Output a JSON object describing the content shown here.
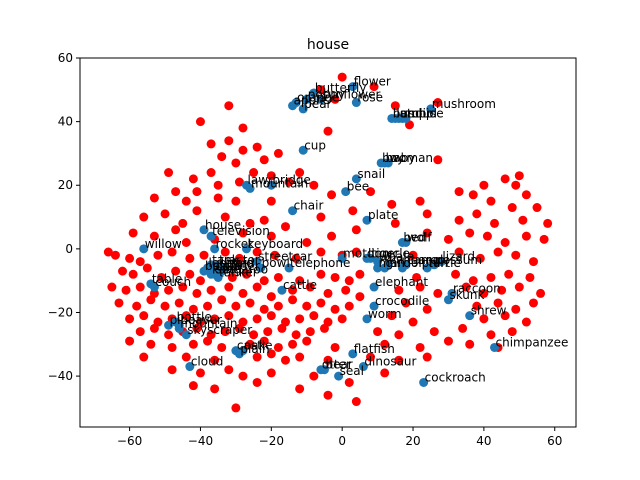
{
  "chart_data": {
    "type": "scatter",
    "title": "house",
    "xlabel": "",
    "ylabel": "",
    "xlim": [
      -74,
      66
    ],
    "ylim": [
      -56,
      60
    ],
    "xticks": [
      -60,
      -40,
      -20,
      0,
      20,
      40,
      60
    ],
    "yticks": [
      -40,
      -20,
      0,
      20,
      40,
      60
    ],
    "grid": false,
    "colors": {
      "labeled": "#1f77b4",
      "background": "#ff0000"
    },
    "labeled_points": [
      {
        "label": "flower",
        "x": 3,
        "y": 51
      },
      {
        "label": "butterfly",
        "x": -8,
        "y": 49
      },
      {
        "label": "poppy",
        "x": -10,
        "y": 47
      },
      {
        "label": "orange",
        "x": -13,
        "y": 46
      },
      {
        "label": "sunflower",
        "x": -6,
        "y": 47
      },
      {
        "label": "apple",
        "x": -14,
        "y": 45
      },
      {
        "label": "pear",
        "x": -11,
        "y": 44
      },
      {
        "label": "rose",
        "x": 4,
        "y": 46
      },
      {
        "label": "mushroom",
        "x": 25,
        "y": 44
      },
      {
        "label": "bus",
        "x": 14,
        "y": 41
      },
      {
        "label": "lamp",
        "x": 15,
        "y": 41
      },
      {
        "label": "orchid",
        "x": 16,
        "y": 41
      },
      {
        "label": "mouse",
        "x": 17,
        "y": 41
      },
      {
        "label": "tulip",
        "x": 18,
        "y": 41
      },
      {
        "label": "cup",
        "x": -11,
        "y": 31
      },
      {
        "label": "boy",
        "x": 11,
        "y": 27
      },
      {
        "label": "baby",
        "x": 12,
        "y": 27
      },
      {
        "label": "woman",
        "x": 13,
        "y": 27
      },
      {
        "label": "snail",
        "x": 4,
        "y": 22
      },
      {
        "label": "lawn",
        "x": -27,
        "y": 20
      },
      {
        "label": "bridge",
        "x": -20,
        "y": 20
      },
      {
        "label": "mountain",
        "x": -26,
        "y": 19
      },
      {
        "label": "bee",
        "x": 1,
        "y": 18
      },
      {
        "label": "chair",
        "x": -14,
        "y": 12
      },
      {
        "label": "plate",
        "x": 7,
        "y": 9
      },
      {
        "label": "house",
        "x": -39,
        "y": 6
      },
      {
        "label": "television",
        "x": -37,
        "y": 4
      },
      {
        "label": "bed",
        "x": 17,
        "y": 2
      },
      {
        "label": "wolf",
        "x": 18,
        "y": 2
      },
      {
        "label": "willow",
        "x": -56,
        "y": 0
      },
      {
        "label": "rocket",
        "x": -36,
        "y": 0
      },
      {
        "label": "keyboard",
        "x": -27,
        "y": 0
      },
      {
        "label": "motorcycle",
        "x": 0,
        "y": -3
      },
      {
        "label": "lion",
        "x": 7,
        "y": -3
      },
      {
        "label": "tiger",
        "x": 8,
        "y": -3
      },
      {
        "label": "whale",
        "x": 10,
        "y": -4
      },
      {
        "label": "lizard",
        "x": 28,
        "y": -4
      },
      {
        "label": "streetcar",
        "x": -24,
        "y": -4
      },
      {
        "label": "kangaroo",
        "x": 13,
        "y": -5
      },
      {
        "label": "camel",
        "x": 18,
        "y": -5
      },
      {
        "label": "possum",
        "x": 26,
        "y": -5
      },
      {
        "label": "telephone",
        "x": -15,
        "y": -6
      },
      {
        "label": "tank",
        "x": -37,
        "y": -5
      },
      {
        "label": "tractor",
        "x": -35,
        "y": -5
      },
      {
        "label": "train",
        "x": -33,
        "y": -6
      },
      {
        "label": "leopard",
        "x": -38,
        "y": -6
      },
      {
        "label": "man",
        "x": 10,
        "y": -6
      },
      {
        "label": "girl",
        "x": 12,
        "y": -6
      },
      {
        "label": "bowl",
        "x": -23,
        "y": -6
      },
      {
        "label": "crab",
        "x": -36,
        "y": -7
      },
      {
        "label": "spider",
        "x": -34,
        "y": -7
      },
      {
        "label": "dolphin",
        "x": 17,
        "y": -6
      },
      {
        "label": "turtle",
        "x": 24,
        "y": -6
      },
      {
        "label": "bottle",
        "x": -39,
        "y": -7
      },
      {
        "label": "sea",
        "x": -36,
        "y": -8
      },
      {
        "label": "tanker",
        "x": -35,
        "y": -9
      },
      {
        "label": "kangaroo",
        "x": -37,
        "y": -8
      },
      {
        "label": "elephant",
        "x": 9,
        "y": -12
      },
      {
        "label": "cattle",
        "x": -17,
        "y": -13
      },
      {
        "label": "table",
        "x": -54,
        "y": -11
      },
      {
        "label": "couch",
        "x": -53,
        "y": -12
      },
      {
        "label": "raccoon",
        "x": 31,
        "y": -14
      },
      {
        "label": "skunk",
        "x": 30,
        "y": -16
      },
      {
        "label": "crocodile",
        "x": 9,
        "y": -18
      },
      {
        "label": "worm",
        "x": 7,
        "y": -22
      },
      {
        "label": "shrew",
        "x": 36,
        "y": -21
      },
      {
        "label": "bottle",
        "x": -47,
        "y": -23
      },
      {
        "label": "beaver",
        "x": -46,
        "y": -24
      },
      {
        "label": "pine",
        "x": -49,
        "y": -24
      },
      {
        "label": "mountain",
        "x": -46,
        "y": -25
      },
      {
        "label": "skyscraper",
        "x": -44,
        "y": -27
      },
      {
        "label": "chimpanzee",
        "x": 43,
        "y": -31
      },
      {
        "label": "castle",
        "x": -30,
        "y": -32
      },
      {
        "label": "oak",
        "x": -28,
        "y": -32
      },
      {
        "label": "plain",
        "x": -29,
        "y": -33
      },
      {
        "label": "flatfish",
        "x": 3,
        "y": -33
      },
      {
        "label": "cloud",
        "x": -43,
        "y": -37
      },
      {
        "label": "dinosaur",
        "x": 6,
        "y": -37
      },
      {
        "label": "otter",
        "x": -6,
        "y": -38
      },
      {
        "label": "bear",
        "x": -5,
        "y": -38
      },
      {
        "label": "seal",
        "x": -1,
        "y": -40
      },
      {
        "label": "cockroach",
        "x": 23,
        "y": -42
      }
    ],
    "background_points": [
      [
        0,
        54
      ],
      [
        9,
        51
      ],
      [
        -6,
        50
      ],
      [
        -2,
        47
      ],
      [
        -32,
        45
      ],
      [
        27,
        46
      ],
      [
        15,
        45
      ],
      [
        19,
        39
      ],
      [
        -4,
        37
      ],
      [
        -40,
        40
      ],
      [
        -28,
        38
      ],
      [
        -32,
        34
      ],
      [
        -37,
        33
      ],
      [
        -28,
        31
      ],
      [
        -24,
        32
      ],
      [
        -34,
        29
      ],
      [
        -22,
        28
      ],
      [
        -30,
        27
      ],
      [
        -18,
        30
      ],
      [
        27,
        28
      ],
      [
        -49,
        24
      ],
      [
        -42,
        22
      ],
      [
        -37,
        24
      ],
      [
        -25,
        24
      ],
      [
        -12,
        24
      ],
      [
        -20,
        23
      ],
      [
        -35,
        20
      ],
      [
        -29,
        21
      ],
      [
        -15,
        21
      ],
      [
        -8,
        20
      ],
      [
        33,
        18
      ],
      [
        40,
        20
      ],
      [
        46,
        22
      ],
      [
        50,
        23
      ],
      [
        49,
        20
      ],
      [
        52,
        17
      ],
      [
        -41,
        18
      ],
      [
        -44,
        15
      ],
      [
        -47,
        18
      ],
      [
        -53,
        16
      ],
      [
        -35,
        16
      ],
      [
        -30,
        15
      ],
      [
        -20,
        15
      ],
      [
        -3,
        17
      ],
      [
        8,
        18
      ],
      [
        22,
        15
      ],
      [
        24,
        11
      ],
      [
        37,
        17
      ],
      [
        42,
        15
      ],
      [
        48,
        13
      ],
      [
        55,
        13
      ],
      [
        -56,
        10
      ],
      [
        -50,
        11
      ],
      [
        -45,
        8
      ],
      [
        -41,
        12
      ],
      [
        -33,
        10
      ],
      [
        -26,
        8
      ],
      [
        -22,
        9
      ],
      [
        -16,
        7
      ],
      [
        -6,
        10
      ],
      [
        3,
        12
      ],
      [
        14,
        14
      ],
      [
        33,
        9
      ],
      [
        38,
        11
      ],
      [
        43,
        8
      ],
      [
        51,
        9
      ],
      [
        58,
        8
      ],
      [
        -59,
        5
      ],
      [
        -53,
        4
      ],
      [
        -47,
        6
      ],
      [
        -44,
        2
      ],
      [
        -36,
        3
      ],
      [
        -28,
        5
      ],
      [
        -20,
        4
      ],
      [
        -10,
        2
      ],
      [
        -3,
        4
      ],
      [
        4,
        6
      ],
      [
        15,
        8
      ],
      [
        24,
        5
      ],
      [
        30,
        3
      ],
      [
        36,
        5
      ],
      [
        41,
        4
      ],
      [
        46,
        2
      ],
      [
        52,
        4
      ],
      [
        57,
        3
      ],
      [
        -66,
        -1
      ],
      [
        -64,
        -2
      ],
      [
        -60,
        -3
      ],
      [
        -57,
        -4
      ],
      [
        -52,
        -2
      ],
      [
        -48,
        -1
      ],
      [
        -43,
        -3
      ],
      [
        -39,
        -2
      ],
      [
        -33,
        -1
      ],
      [
        -29,
        -3
      ],
      [
        -24,
        -1
      ],
      [
        -19,
        -2
      ],
      [
        -13,
        -3
      ],
      [
        -6,
        -1
      ],
      [
        0,
        -2
      ],
      [
        4,
        -1
      ],
      [
        20,
        -2
      ],
      [
        33,
        -1
      ],
      [
        39,
        -3
      ],
      [
        44,
        -1
      ],
      [
        49,
        -2
      ],
      [
        54,
        -4
      ],
      [
        -62,
        -7
      ],
      [
        -59,
        -8
      ],
      [
        -55,
        -6
      ],
      [
        -51,
        -9
      ],
      [
        -47,
        -7
      ],
      [
        -43,
        -8
      ],
      [
        -40,
        -10
      ],
      [
        -31,
        -9
      ],
      [
        -27,
        -8
      ],
      [
        -22,
        -10
      ],
      [
        -18,
        -9
      ],
      [
        -12,
        -10
      ],
      [
        -6,
        -8
      ],
      [
        -2,
        -9
      ],
      [
        2,
        -10
      ],
      [
        5,
        -8
      ],
      [
        21,
        -9
      ],
      [
        32,
        -8
      ],
      [
        37,
        -10
      ],
      [
        42,
        -9
      ],
      [
        47,
        -8
      ],
      [
        53,
        -9
      ],
      [
        -65,
        -12
      ],
      [
        -61,
        -13
      ],
      [
        -57,
        -12
      ],
      [
        -53,
        -14
      ],
      [
        -49,
        -13
      ],
      [
        -45,
        -12
      ],
      [
        -41,
        -14
      ],
      [
        -37,
        -13
      ],
      [
        -32,
        -12
      ],
      [
        -28,
        -14
      ],
      [
        -24,
        -12
      ],
      [
        -20,
        -15
      ],
      [
        -14,
        -13
      ],
      [
        -9,
        -12
      ],
      [
        -4,
        -14
      ],
      [
        1,
        -13
      ],
      [
        5,
        -15
      ],
      [
        16,
        -13
      ],
      [
        22,
        -12
      ],
      [
        27,
        -14
      ],
      [
        35,
        -12
      ],
      [
        40,
        -14
      ],
      [
        45,
        -13
      ],
      [
        50,
        -12
      ],
      [
        56,
        -14
      ],
      [
        -63,
        -17
      ],
      [
        -58,
        -18
      ],
      [
        -54,
        -16
      ],
      [
        -50,
        -18
      ],
      [
        -46,
        -17
      ],
      [
        -42,
        -19
      ],
      [
        -38,
        -18
      ],
      [
        -34,
        -16
      ],
      [
        -30,
        -18
      ],
      [
        -26,
        -17
      ],
      [
        -22,
        -19
      ],
      [
        -18,
        -18
      ],
      [
        -14,
        -16
      ],
      [
        -10,
        -18
      ],
      [
        -6,
        -17
      ],
      [
        -2,
        -19
      ],
      [
        2,
        -18
      ],
      [
        18,
        -17
      ],
      [
        24,
        -19
      ],
      [
        38,
        -18
      ],
      [
        44,
        -17
      ],
      [
        49,
        -19
      ],
      [
        54,
        -17
      ],
      [
        -60,
        -22
      ],
      [
        -56,
        -21
      ],
      [
        -52,
        -23
      ],
      [
        -48,
        -22
      ],
      [
        -44,
        -21
      ],
      [
        -40,
        -23
      ],
      [
        -36,
        -22
      ],
      [
        -32,
        -21
      ],
      [
        -28,
        -23
      ],
      [
        -24,
        -22
      ],
      [
        -20,
        -21
      ],
      [
        -16,
        -23
      ],
      [
        -12,
        -22
      ],
      [
        -8,
        -21
      ],
      [
        -4,
        -23
      ],
      [
        0,
        -22
      ],
      [
        14,
        -21
      ],
      [
        20,
        -23
      ],
      [
        40,
        -22
      ],
      [
        46,
        -21
      ],
      [
        52,
        -23
      ],
      [
        -57,
        -26
      ],
      [
        -53,
        -25
      ],
      [
        -49,
        -27
      ],
      [
        -45,
        -26
      ],
      [
        -41,
        -25
      ],
      [
        -37,
        -27
      ],
      [
        -33,
        -26
      ],
      [
        -29,
        -25
      ],
      [
        -25,
        -27
      ],
      [
        -21,
        -26
      ],
      [
        -17,
        -25
      ],
      [
        -13,
        -27
      ],
      [
        -9,
        -26
      ],
      [
        -5,
        -25
      ],
      [
        10,
        -26
      ],
      [
        16,
        -27
      ],
      [
        26,
        -26
      ],
      [
        34,
        -25
      ],
      [
        42,
        -27
      ],
      [
        48,
        -26
      ],
      [
        -60,
        -29
      ],
      [
        -54,
        -30
      ],
      [
        -48,
        -31
      ],
      [
        -42,
        -30
      ],
      [
        -38,
        -29
      ],
      [
        -34,
        -31
      ],
      [
        -26,
        -30
      ],
      [
        -22,
        -29
      ],
      [
        -18,
        -31
      ],
      [
        -14,
        -30
      ],
      [
        -10,
        -29
      ],
      [
        -2,
        -31
      ],
      [
        12,
        -30
      ],
      [
        22,
        -31
      ],
      [
        30,
        -29
      ],
      [
        36,
        -30
      ],
      [
        44,
        -31
      ],
      [
        -56,
        -34
      ],
      [
        -44,
        -34
      ],
      [
        -36,
        -35
      ],
      [
        -24,
        -34
      ],
      [
        -20,
        -33
      ],
      [
        -16,
        -35
      ],
      [
        -12,
        -34
      ],
      [
        -4,
        -35
      ],
      [
        8,
        -34
      ],
      [
        16,
        -35
      ],
      [
        24,
        -34
      ],
      [
        -48,
        -38
      ],
      [
        -40,
        -39
      ],
      [
        -32,
        -38
      ],
      [
        -28,
        -40
      ],
      [
        -20,
        -39
      ],
      [
        -8,
        -40
      ],
      [
        2,
        -42
      ],
      [
        12,
        -39
      ],
      [
        -42,
        -43
      ],
      [
        -36,
        -44
      ],
      [
        -24,
        -42
      ],
      [
        -12,
        -44
      ],
      [
        -4,
        -46
      ],
      [
        4,
        -48
      ],
      [
        -30,
        -50
      ]
    ]
  }
}
